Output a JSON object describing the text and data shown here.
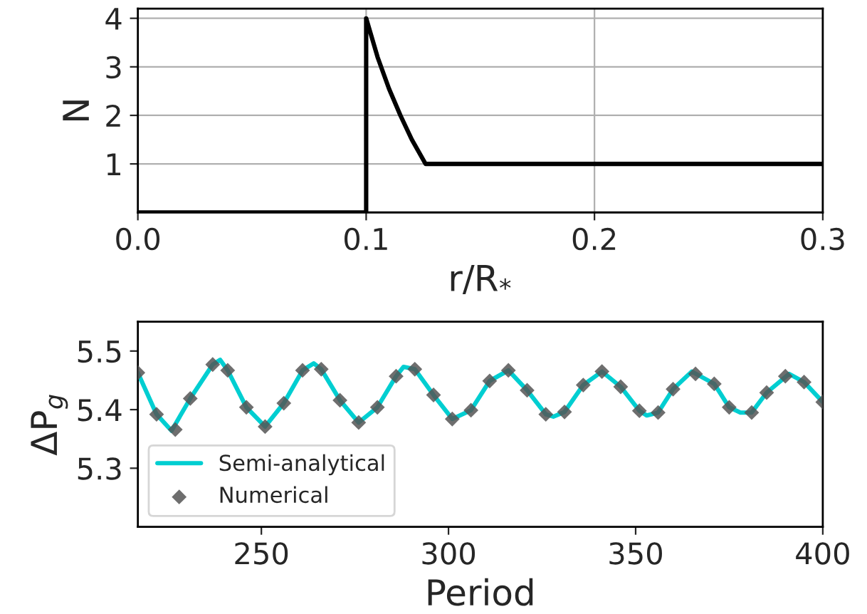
{
  "chart_data": [
    {
      "type": "line",
      "xlabel": "r/R$_{*}$",
      "ylabel": "N",
      "xlim": [
        0.0,
        0.3
      ],
      "ylim": [
        0,
        4.2
      ],
      "xticks": [
        {
          "value": 0.0,
          "label": "0.0"
        },
        0.1,
        0.2,
        0.3
      ],
      "yticks": [
        1,
        2,
        3,
        4
      ],
      "grid": true,
      "legend": false,
      "series": [
        {
          "color": "#000000",
          "x": [
            0.0,
            0.1,
            0.1,
            0.105,
            0.11,
            0.115,
            0.12,
            0.126,
            0.3
          ],
          "values": [
            0,
            0,
            4,
            3.2,
            2.55,
            2.0,
            1.5,
            1.0,
            1.0
          ]
        }
      ]
    },
    {
      "type": "line",
      "xlabel": "Period",
      "ylabel": "ΔP$_{g}$",
      "xlim": [
        217,
        400
      ],
      "ylim": [
        5.2,
        5.55
      ],
      "xticks": [
        250,
        300,
        350,
        400
      ],
      "yticks": [
        5.3,
        5.4,
        5.5
      ],
      "grid": false,
      "legend": "bottom left",
      "series": [
        {
          "name": "Semi-analytical",
          "type": "line",
          "color": "#00ced1",
          "x": [
            217,
            222,
            226,
            231,
            237,
            239,
            241,
            246,
            251,
            256,
            261,
            264,
            266,
            271,
            276,
            281,
            286,
            288,
            291,
            296,
            301,
            306,
            311,
            316,
            321,
            326,
            328,
            331,
            336,
            341,
            346,
            351,
            353,
            356,
            360,
            365,
            371,
            375,
            378,
            381,
            385,
            391,
            395,
            400
          ],
          "values": [
            5.463,
            5.392,
            5.364,
            5.419,
            5.477,
            5.485,
            5.467,
            5.404,
            5.371,
            5.411,
            5.467,
            5.479,
            5.469,
            5.416,
            5.378,
            5.404,
            5.457,
            5.473,
            5.469,
            5.425,
            5.384,
            5.399,
            5.449,
            5.467,
            5.433,
            5.392,
            5.388,
            5.396,
            5.442,
            5.465,
            5.439,
            5.398,
            5.39,
            5.395,
            5.435,
            5.465,
            5.444,
            5.404,
            5.395,
            5.395,
            5.429,
            5.461,
            5.447,
            5.413
          ]
        },
        {
          "name": "Numerical",
          "type": "scatter",
          "marker": "diamond",
          "color": "#555555",
          "x": [
            217,
            222,
            227,
            231,
            237,
            241,
            246,
            251,
            256,
            261,
            266,
            271,
            276,
            281,
            286,
            291,
            296,
            301,
            306,
            311,
            316,
            321,
            326,
            331,
            336,
            341,
            346,
            351,
            356,
            360,
            366,
            371,
            375,
            381,
            385,
            390,
            395,
            400
          ],
          "values": [
            5.463,
            5.392,
            5.366,
            5.419,
            5.477,
            5.467,
            5.404,
            5.371,
            5.411,
            5.467,
            5.469,
            5.416,
            5.378,
            5.404,
            5.457,
            5.469,
            5.425,
            5.384,
            5.399,
            5.449,
            5.467,
            5.433,
            5.392,
            5.396,
            5.442,
            5.465,
            5.439,
            5.398,
            5.395,
            5.435,
            5.461,
            5.444,
            5.404,
            5.395,
            5.429,
            5.457,
            5.447,
            5.413
          ]
        }
      ]
    }
  ]
}
